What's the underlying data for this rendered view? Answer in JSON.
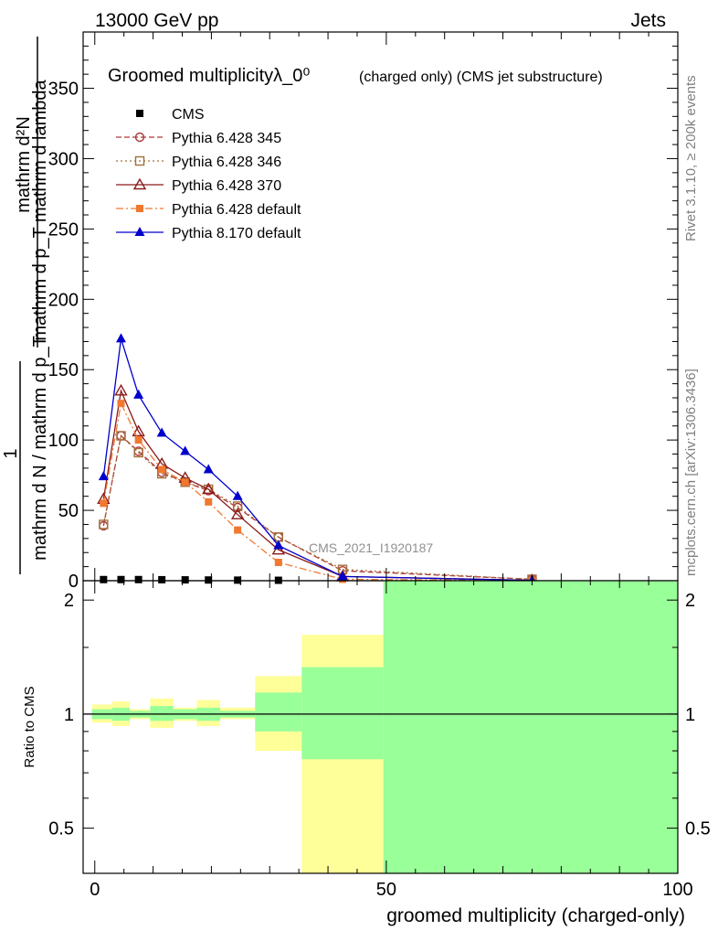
{
  "header": {
    "energy_label": "13000 GeV pp",
    "category_label": "Jets"
  },
  "side_labels": {
    "rivet": "Rivet 3.1.10, ≥ 200k events",
    "mcplots": "mcplots.cern.ch [arXiv:1306.3436]"
  },
  "chart_data": [
    {
      "type": "line",
      "title": "Groomed multiplicityλ_0⁰",
      "title_suffix": "(charged only) (CMS jet substructure)",
      "xlabel": "groomed multiplicity (charged-only)",
      "ylabel_numer": "mathrm d²N",
      "ylabel_denom": "mathrm d p_T mathrm d lambda",
      "ylabel_prefix": "1",
      "ylabel_left": "mathrm d N / mathrm d p_T",
      "analysis_id": "CMS_2021_I1920187",
      "xlim": [
        -2,
        100
      ],
      "ylim": [
        0,
        390
      ],
      "xticks": [
        0,
        50,
        100
      ],
      "yticks": [
        0,
        50,
        100,
        150,
        200,
        250,
        300,
        350
      ],
      "ytick_labels": [
        "0",
        "50",
        "100",
        "150",
        "200",
        "250",
        "300",
        "350"
      ],
      "legend_position": "top-left",
      "series": [
        {
          "name": "CMS",
          "color": "#000000",
          "marker": "square",
          "line": "none",
          "x": [
            1.5,
            4.5,
            7.5,
            11.5,
            15.5,
            19.5,
            24.5,
            31.5
          ],
          "y": [
            0.8,
            0.8,
            0.8,
            0.7,
            0.6,
            0.5,
            0.4,
            0.3
          ]
        },
        {
          "name": "Pythia 6.428 345",
          "color": "#b03838",
          "marker": "circle-open",
          "line": "dashed",
          "x": [
            1.5,
            4.5,
            7.5,
            11.5,
            15.5,
            19.5,
            24.5,
            31.5,
            42.5,
            75
          ],
          "y": [
            39,
            103,
            92,
            77,
            70,
            64,
            52,
            31,
            7,
            1
          ]
        },
        {
          "name": "Pythia 6.428 346",
          "color": "#a0703a",
          "marker": "square-open",
          "line": "dotted",
          "x": [
            1.5,
            4.5,
            7.5,
            11.5,
            15.5,
            19.5,
            24.5,
            31.5,
            42.5,
            75
          ],
          "y": [
            40,
            103,
            91,
            76,
            70,
            65,
            53,
            31,
            8,
            1
          ]
        },
        {
          "name": "Pythia 6.428 370",
          "color": "#8b1a1a",
          "marker": "triangle-open",
          "line": "solid",
          "x": [
            1.5,
            4.5,
            7.5,
            11.5,
            15.5,
            19.5,
            24.5,
            31.5,
            42.5,
            75
          ],
          "y": [
            58,
            135,
            106,
            83,
            73,
            65,
            47,
            22,
            3,
            0.3
          ]
        },
        {
          "name": "Pythia 6.428 default",
          "color": "#f07830",
          "marker": "square-filled",
          "line": "dashdot",
          "x": [
            1.5,
            4.5,
            7.5,
            11.5,
            15.5,
            19.5,
            24.5,
            31.5,
            42.5,
            75
          ],
          "y": [
            55,
            126,
            100,
            79,
            70,
            56,
            36,
            13,
            1,
            0.1
          ]
        },
        {
          "name": "Pythia 8.170 default",
          "color": "#0000cc",
          "marker": "triangle-filled",
          "line": "solid",
          "x": [
            1.5,
            4.5,
            7.5,
            11.5,
            15.5,
            19.5,
            24.5,
            31.5,
            42.5,
            75
          ],
          "y": [
            74,
            172,
            132,
            105,
            92,
            79,
            60,
            25,
            3,
            0.2
          ]
        }
      ]
    },
    {
      "type": "area",
      "ylabel": "Ratio to CMS",
      "xlim": [
        -2,
        100
      ],
      "ylim": [
        0.38,
        2.25
      ],
      "xticks": [
        0,
        50,
        100
      ],
      "xtick_labels": [
        "0",
        "50",
        "100"
      ],
      "yticks": [
        0.5,
        1,
        2
      ],
      "ytick_labels": [
        "0.5",
        "1",
        "2"
      ],
      "reference": 1,
      "bands": [
        {
          "x0": -0.5,
          "x1": 3,
          "green": [
            0.97,
            1.03
          ],
          "yellow": [
            0.95,
            1.06
          ]
        },
        {
          "x0": 3,
          "x1": 6,
          "green": [
            0.96,
            1.04
          ],
          "yellow": [
            0.93,
            1.08
          ]
        },
        {
          "x0": 6,
          "x1": 9.5,
          "green": [
            0.98,
            1.02
          ],
          "yellow": [
            0.97,
            1.03
          ]
        },
        {
          "x0": 9.5,
          "x1": 13.5,
          "green": [
            0.96,
            1.05
          ],
          "yellow": [
            0.92,
            1.1
          ]
        },
        {
          "x0": 13.5,
          "x1": 17.5,
          "green": [
            0.97,
            1.03
          ],
          "yellow": [
            0.96,
            1.04
          ]
        },
        {
          "x0": 17.5,
          "x1": 21.5,
          "green": [
            0.96,
            1.04
          ],
          "yellow": [
            0.93,
            1.09
          ]
        },
        {
          "x0": 21.5,
          "x1": 27.5,
          "green": [
            0.98,
            1.02
          ],
          "yellow": [
            0.97,
            1.04
          ]
        },
        {
          "x0": 27.5,
          "x1": 35.5,
          "green": [
            0.9,
            1.14
          ],
          "yellow": [
            0.8,
            1.26
          ]
        },
        {
          "x0": 35.5,
          "x1": 49.5,
          "green": [
            0.76,
            1.33
          ],
          "yellow": [
            0.38,
            1.62
          ]
        },
        {
          "x0": 49.5,
          "x1": 100,
          "green": [
            0.38,
            2.25
          ],
          "yellow": [
            0.38,
            2.25
          ]
        }
      ]
    }
  ]
}
